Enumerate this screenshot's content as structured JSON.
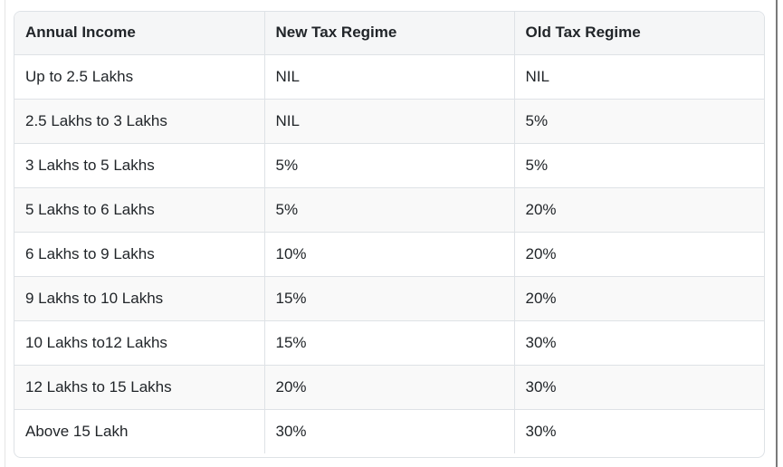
{
  "table": {
    "columns": [
      "Annual Income",
      "New Tax Regime",
      "Old Tax Regime"
    ],
    "rows": [
      [
        "Up to 2.5 Lakhs",
        "NIL",
        "NIL"
      ],
      [
        "2.5 Lakhs to 3 Lakhs",
        "NIL",
        "5%"
      ],
      [
        "3 Lakhs to 5 Lakhs",
        "5%",
        "5%"
      ],
      [
        "5 Lakhs to 6 Lakhs",
        "5%",
        "20%"
      ],
      [
        "6 Lakhs to 9 Lakhs",
        "10%",
        "20%"
      ],
      [
        "9 Lakhs to 10 Lakhs",
        "15%",
        "20%"
      ],
      [
        "10 Lakhs to12 Lakhs",
        "15%",
        "30%"
      ],
      [
        "12 Lakhs to 15 Lakhs",
        "20%",
        "30%"
      ],
      [
        "Above 15 Lakh",
        "30%",
        "30%"
      ]
    ]
  },
  "colors": {
    "table_border": "#dee2e6",
    "header_background": "#f5f6f7",
    "stripe_background": "#f9f9f9",
    "text": "#212529",
    "left_edge_line": "#e4e4e4",
    "right_edge_line": "#7a7a7a"
  }
}
